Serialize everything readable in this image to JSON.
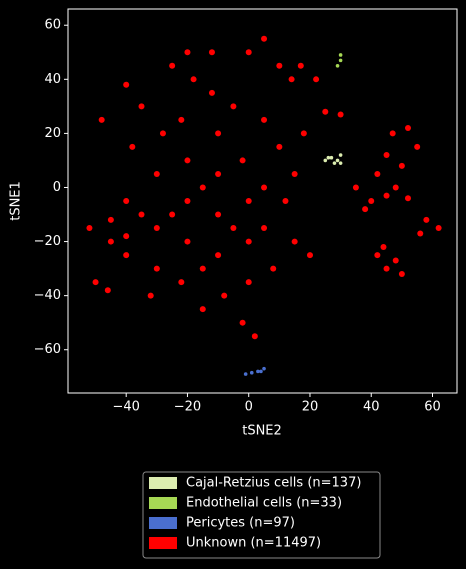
{
  "chart_data": {
    "type": "scatter",
    "xlabel": "tSNE2",
    "ylabel": "tSNE1",
    "xlim": [
      -59,
      68
    ],
    "ylim": [
      -76,
      66
    ],
    "xticks": [
      {
        "value": -40,
        "label": "−40"
      },
      {
        "value": -20,
        "label": "−20"
      },
      0,
      20,
      40,
      60
    ],
    "yticks": [
      {
        "value": -60,
        "label": "−60"
      },
      {
        "value": -40,
        "label": "−40"
      },
      {
        "value": -20,
        "label": "−20"
      },
      0,
      20,
      40,
      60
    ],
    "series": [
      {
        "name": "Unknown (n=11497)",
        "color": "#ff0000",
        "x": [
          -52,
          -45,
          -45,
          -40,
          -40,
          -38,
          -35,
          -40,
          -30,
          -30,
          -30,
          -32,
          -25,
          -20,
          -22,
          -20,
          -20,
          -20,
          -22,
          -15,
          -12,
          -10,
          -10,
          -10,
          -10,
          -8,
          -5,
          -2,
          0,
          0,
          0,
          -2,
          2,
          5,
          5,
          5,
          8,
          10,
          12,
          15,
          15,
          18,
          20,
          5,
          0,
          -12,
          10,
          -48,
          -50,
          -46,
          25,
          30,
          17,
          22,
          14,
          -35,
          -25,
          -15,
          -5,
          -15,
          -28,
          -18,
          -40,
          35,
          40,
          42,
          45,
          48,
          50,
          52,
          45,
          38,
          42,
          45,
          48,
          44,
          50,
          47,
          52,
          55,
          58,
          62,
          56
        ],
        "y": [
          -15,
          -12,
          -20,
          -5,
          -25,
          15,
          30,
          38,
          5,
          -15,
          -30,
          -40,
          45,
          50,
          25,
          10,
          -5,
          -20,
          -35,
          -45,
          35,
          20,
          5,
          -10,
          -25,
          -40,
          30,
          10,
          -5,
          -20,
          -35,
          -50,
          -55,
          25,
          0,
          -15,
          -30,
          15,
          -5,
          -20,
          5,
          20,
          -25,
          55,
          50,
          50,
          45,
          25,
          -35,
          -38,
          28,
          27,
          45,
          40,
          40,
          -10,
          -10,
          0,
          -15,
          -30,
          20,
          40,
          -18,
          0,
          -5,
          5,
          12,
          0,
          8,
          -4,
          -3,
          -8,
          -25,
          -30,
          -27,
          -22,
          -32,
          20,
          22,
          15,
          -12,
          -15,
          -17
        ]
      },
      {
        "name": "Cajal-Retzius cells (n=137)",
        "color": "#dcedb0",
        "x": [
          25,
          27,
          29,
          30,
          28,
          26,
          30
        ],
        "y": [
          10,
          11,
          10,
          12,
          9,
          11,
          9
        ]
      },
      {
        "name": "Endothelial cells (n=33)",
        "color": "#a6d854",
        "x": [
          29,
          30,
          30
        ],
        "y": [
          45,
          47,
          49
        ]
      },
      {
        "name": "Pericytes (n=97)",
        "color": "#4a6fcf",
        "x": [
          -1,
          1,
          3,
          5,
          4
        ],
        "y": [
          -69,
          -68.5,
          -68,
          -67,
          -68
        ]
      }
    ],
    "legend_order": [
      1,
      2,
      3,
      0
    ]
  }
}
